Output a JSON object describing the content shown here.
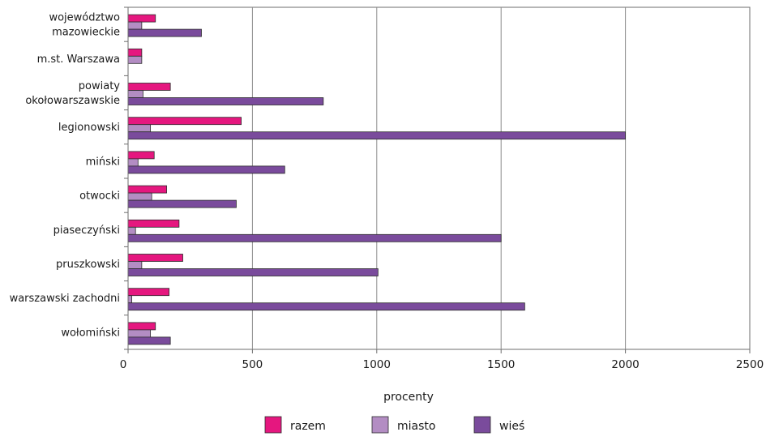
{
  "chart_data": {
    "type": "bar",
    "orientation": "horizontal",
    "categories": [
      [
        "województwo",
        "mazowieckie"
      ],
      [
        "m.st. Warszawa"
      ],
      [
        "powiaty",
        "okołowarszawskie"
      ],
      [
        "legionowski"
      ],
      [
        "miński"
      ],
      [
        "otwocki"
      ],
      [
        "piaseczyński"
      ],
      [
        "pruszkowski"
      ],
      [
        "warszawski zachodni"
      ],
      [
        "wołomiński"
      ]
    ],
    "series": [
      {
        "name": "razem",
        "color": "#e5177f",
        "values": [
          110,
          55,
          170,
          455,
          105,
          155,
          205,
          220,
          165,
          110
        ]
      },
      {
        "name": "miasto",
        "color": "#b38dc3",
        "values": [
          55,
          55,
          60,
          90,
          40,
          95,
          30,
          55,
          15,
          90
        ]
      },
      {
        "name": "wieś",
        "color": "#7a4b9c",
        "values": [
          295,
          null,
          785,
          2000,
          630,
          435,
          1500,
          1005,
          1595,
          170
        ]
      }
    ],
    "xlabel": "procenty",
    "xlim": [
      0,
      2500
    ],
    "xticks": [
      0,
      500,
      1000,
      1500,
      2000,
      2500
    ],
    "grid": "vertical",
    "legend_position": "bottom-center"
  }
}
